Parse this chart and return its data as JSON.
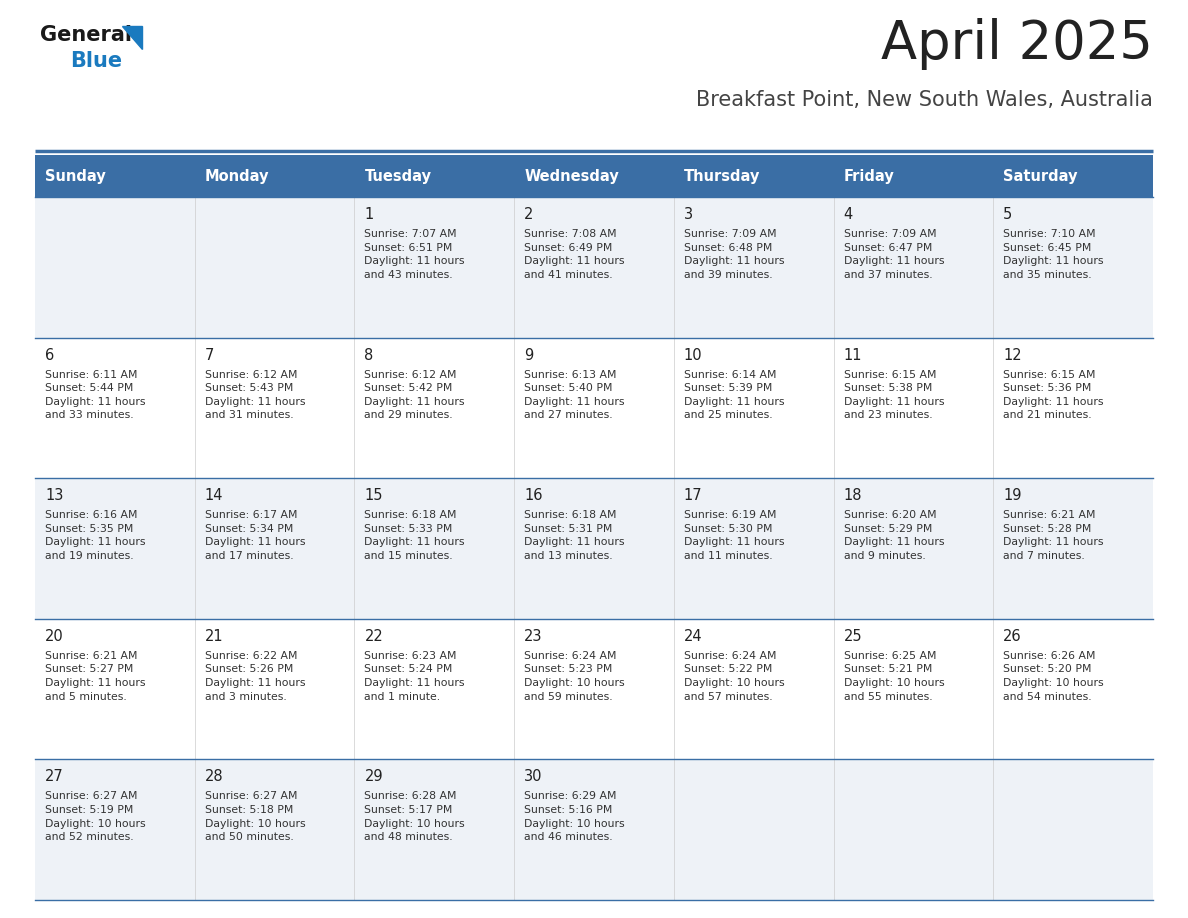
{
  "title": "April 2025",
  "subtitle": "Breakfast Point, New South Wales, Australia",
  "header_bg_color": "#3a6ea5",
  "header_text_color": "#ffffff",
  "row_bg_even": "#eef2f7",
  "row_bg_odd": "#ffffff",
  "day_headers": [
    "Sunday",
    "Monday",
    "Tuesday",
    "Wednesday",
    "Thursday",
    "Friday",
    "Saturday"
  ],
  "calendar": [
    [
      {
        "day": "",
        "info": ""
      },
      {
        "day": "",
        "info": ""
      },
      {
        "day": "1",
        "info": "Sunrise: 7:07 AM\nSunset: 6:51 PM\nDaylight: 11 hours\nand 43 minutes."
      },
      {
        "day": "2",
        "info": "Sunrise: 7:08 AM\nSunset: 6:49 PM\nDaylight: 11 hours\nand 41 minutes."
      },
      {
        "day": "3",
        "info": "Sunrise: 7:09 AM\nSunset: 6:48 PM\nDaylight: 11 hours\nand 39 minutes."
      },
      {
        "day": "4",
        "info": "Sunrise: 7:09 AM\nSunset: 6:47 PM\nDaylight: 11 hours\nand 37 minutes."
      },
      {
        "day": "5",
        "info": "Sunrise: 7:10 AM\nSunset: 6:45 PM\nDaylight: 11 hours\nand 35 minutes."
      }
    ],
    [
      {
        "day": "6",
        "info": "Sunrise: 6:11 AM\nSunset: 5:44 PM\nDaylight: 11 hours\nand 33 minutes."
      },
      {
        "day": "7",
        "info": "Sunrise: 6:12 AM\nSunset: 5:43 PM\nDaylight: 11 hours\nand 31 minutes."
      },
      {
        "day": "8",
        "info": "Sunrise: 6:12 AM\nSunset: 5:42 PM\nDaylight: 11 hours\nand 29 minutes."
      },
      {
        "day": "9",
        "info": "Sunrise: 6:13 AM\nSunset: 5:40 PM\nDaylight: 11 hours\nand 27 minutes."
      },
      {
        "day": "10",
        "info": "Sunrise: 6:14 AM\nSunset: 5:39 PM\nDaylight: 11 hours\nand 25 minutes."
      },
      {
        "day": "11",
        "info": "Sunrise: 6:15 AM\nSunset: 5:38 PM\nDaylight: 11 hours\nand 23 minutes."
      },
      {
        "day": "12",
        "info": "Sunrise: 6:15 AM\nSunset: 5:36 PM\nDaylight: 11 hours\nand 21 minutes."
      }
    ],
    [
      {
        "day": "13",
        "info": "Sunrise: 6:16 AM\nSunset: 5:35 PM\nDaylight: 11 hours\nand 19 minutes."
      },
      {
        "day": "14",
        "info": "Sunrise: 6:17 AM\nSunset: 5:34 PM\nDaylight: 11 hours\nand 17 minutes."
      },
      {
        "day": "15",
        "info": "Sunrise: 6:18 AM\nSunset: 5:33 PM\nDaylight: 11 hours\nand 15 minutes."
      },
      {
        "day": "16",
        "info": "Sunrise: 6:18 AM\nSunset: 5:31 PM\nDaylight: 11 hours\nand 13 minutes."
      },
      {
        "day": "17",
        "info": "Sunrise: 6:19 AM\nSunset: 5:30 PM\nDaylight: 11 hours\nand 11 minutes."
      },
      {
        "day": "18",
        "info": "Sunrise: 6:20 AM\nSunset: 5:29 PM\nDaylight: 11 hours\nand 9 minutes."
      },
      {
        "day": "19",
        "info": "Sunrise: 6:21 AM\nSunset: 5:28 PM\nDaylight: 11 hours\nand 7 minutes."
      }
    ],
    [
      {
        "day": "20",
        "info": "Sunrise: 6:21 AM\nSunset: 5:27 PM\nDaylight: 11 hours\nand 5 minutes."
      },
      {
        "day": "21",
        "info": "Sunrise: 6:22 AM\nSunset: 5:26 PM\nDaylight: 11 hours\nand 3 minutes."
      },
      {
        "day": "22",
        "info": "Sunrise: 6:23 AM\nSunset: 5:24 PM\nDaylight: 11 hours\nand 1 minute."
      },
      {
        "day": "23",
        "info": "Sunrise: 6:24 AM\nSunset: 5:23 PM\nDaylight: 10 hours\nand 59 minutes."
      },
      {
        "day": "24",
        "info": "Sunrise: 6:24 AM\nSunset: 5:22 PM\nDaylight: 10 hours\nand 57 minutes."
      },
      {
        "day": "25",
        "info": "Sunrise: 6:25 AM\nSunset: 5:21 PM\nDaylight: 10 hours\nand 55 minutes."
      },
      {
        "day": "26",
        "info": "Sunrise: 6:26 AM\nSunset: 5:20 PM\nDaylight: 10 hours\nand 54 minutes."
      }
    ],
    [
      {
        "day": "27",
        "info": "Sunrise: 6:27 AM\nSunset: 5:19 PM\nDaylight: 10 hours\nand 52 minutes."
      },
      {
        "day": "28",
        "info": "Sunrise: 6:27 AM\nSunset: 5:18 PM\nDaylight: 10 hours\nand 50 minutes."
      },
      {
        "day": "29",
        "info": "Sunrise: 6:28 AM\nSunset: 5:17 PM\nDaylight: 10 hours\nand 48 minutes."
      },
      {
        "day": "30",
        "info": "Sunrise: 6:29 AM\nSunset: 5:16 PM\nDaylight: 10 hours\nand 46 minutes."
      },
      {
        "day": "",
        "info": ""
      },
      {
        "day": "",
        "info": ""
      },
      {
        "day": "",
        "info": ""
      }
    ]
  ],
  "logo_blue_color": "#1a7abf",
  "logo_dark_color": "#1a1a1a",
  "title_color": "#222222",
  "subtitle_color": "#444444",
  "cell_text_color": "#333333",
  "day_number_color": "#222222",
  "border_color": "#3a6ea5",
  "fig_width": 11.88,
  "fig_height": 9.18,
  "dpi": 100
}
